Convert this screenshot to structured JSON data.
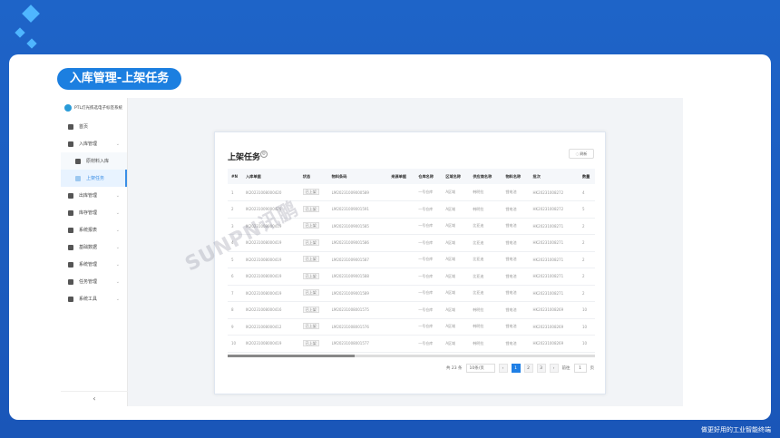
{
  "page_title": "入库管理-上架任务",
  "footer_slogan": "做更好用的工业智能终端",
  "colors": {
    "accent": "#1f7fe5",
    "background": "#1e64c8"
  },
  "sidebar": {
    "app_name": "PTL灯光拣选电子标签系统",
    "items": [
      {
        "label": "首页",
        "icon": "home-icon"
      },
      {
        "label": "入库管理",
        "icon": "inbound-icon",
        "expanded": true
      },
      {
        "label": "原材料入库",
        "icon": "document-icon",
        "sub": true
      },
      {
        "label": "上架任务",
        "icon": "task-icon",
        "sub": true,
        "active": true
      },
      {
        "label": "出库管理",
        "icon": "outbound-icon"
      },
      {
        "label": "库存管理",
        "icon": "inventory-icon"
      },
      {
        "label": "系统报表",
        "icon": "report-icon"
      },
      {
        "label": "基础数据",
        "icon": "data-icon"
      },
      {
        "label": "系统管理",
        "icon": "gear-icon"
      },
      {
        "label": "任务管理",
        "icon": "clipboard-icon"
      },
      {
        "label": "系统工具",
        "icon": "tool-icon"
      }
    ],
    "collapse": "‹"
  },
  "card": {
    "title": "上架任务",
    "refresh": "◌ 刷新",
    "columns": [
      "#N",
      "入库单据",
      "状态",
      "物料条码",
      "来源单据",
      "仓库名称",
      "区域名称",
      "供应商名称",
      "物料名称",
      "批次",
      "数量"
    ],
    "rows": [
      [
        "1",
        "IK20231008000420",
        "已上架",
        "LM20231009000589",
        "",
        "一号仓库",
        "A区域",
        "韩明拉",
        "锂电池",
        "HK20231008272",
        "4"
      ],
      [
        "2",
        "IK20231009000420",
        "已上架",
        "LM20231009001591",
        "",
        "一号仓库",
        "A区域",
        "韩明拉",
        "锂电池",
        "HK20231008272",
        "5"
      ],
      [
        "3",
        "IK20231008000419",
        "已上架",
        "LM20231009001585",
        "",
        "一号仓库",
        "A区域",
        "比亚迪",
        "锂电池",
        "HK20231008271",
        "2"
      ],
      [
        "4",
        "IK20231008000419",
        "已上架",
        "LM20231009001586",
        "",
        "一号仓库",
        "A区域",
        "比亚迪",
        "锂电池",
        "HK20231008271",
        "2"
      ],
      [
        "5",
        "IK20231008000419",
        "已上架",
        "LM20231009001587",
        "",
        "一号仓库",
        "A区域",
        "比亚迪",
        "锂电池",
        "HK20231008271",
        "2"
      ],
      [
        "6",
        "IK20231008000419",
        "已上架",
        "LM20231009001588",
        "",
        "一号仓库",
        "A区域",
        "比亚迪",
        "锂电池",
        "HK20231008271",
        "2"
      ],
      [
        "7",
        "IK20231008000419",
        "已上架",
        "LM20231009001589",
        "",
        "一号仓库",
        "A区域",
        "比亚迪",
        "锂电池",
        "HK20231008271",
        "2"
      ],
      [
        "8",
        "IK20231008000416",
        "已上架",
        "LM20231008001575",
        "",
        "一号仓库",
        "A区域",
        "韩明拉",
        "锂电池",
        "HK20231008269",
        "10"
      ],
      [
        "9",
        "IK20231008000412",
        "已上架",
        "LM20231008001576",
        "",
        "一号仓库",
        "A区域",
        "韩明拉",
        "锂电池",
        "HK20231008269",
        "10"
      ],
      [
        "10",
        "IK20231008000419",
        "已上架",
        "LM20231008001577",
        "",
        "一号仓库",
        "A区域",
        "韩明拉",
        "锂电池",
        "HK20231008269",
        "10"
      ]
    ],
    "pagination": {
      "total": "共 23 条",
      "page_size": "10条/页",
      "pages": [
        "1",
        "2",
        "3"
      ],
      "current": "1",
      "prev": "‹",
      "next": "›",
      "goto_label": "前往",
      "goto_value": "1",
      "page_unit": "页"
    }
  },
  "watermark": "SUNPN讯鹏"
}
